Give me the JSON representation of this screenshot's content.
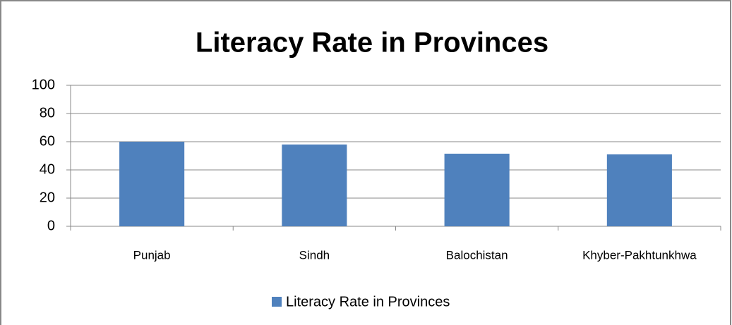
{
  "chart_data": {
    "type": "bar",
    "title": "Literacy Rate in Provinces",
    "categories": [
      "Punjab",
      "Sindh",
      "Balochistan",
      "Khyber-Pakhtunkhwa"
    ],
    "series": [
      {
        "name": "Literacy Rate in Provinces",
        "color": "#4f81bd",
        "values": [
          60,
          58,
          51.5,
          51
        ]
      }
    ],
    "ylim": [
      0,
      100
    ],
    "yticks": [
      0,
      20,
      40,
      60,
      80,
      100
    ],
    "grid": true,
    "legend": "bottom"
  }
}
